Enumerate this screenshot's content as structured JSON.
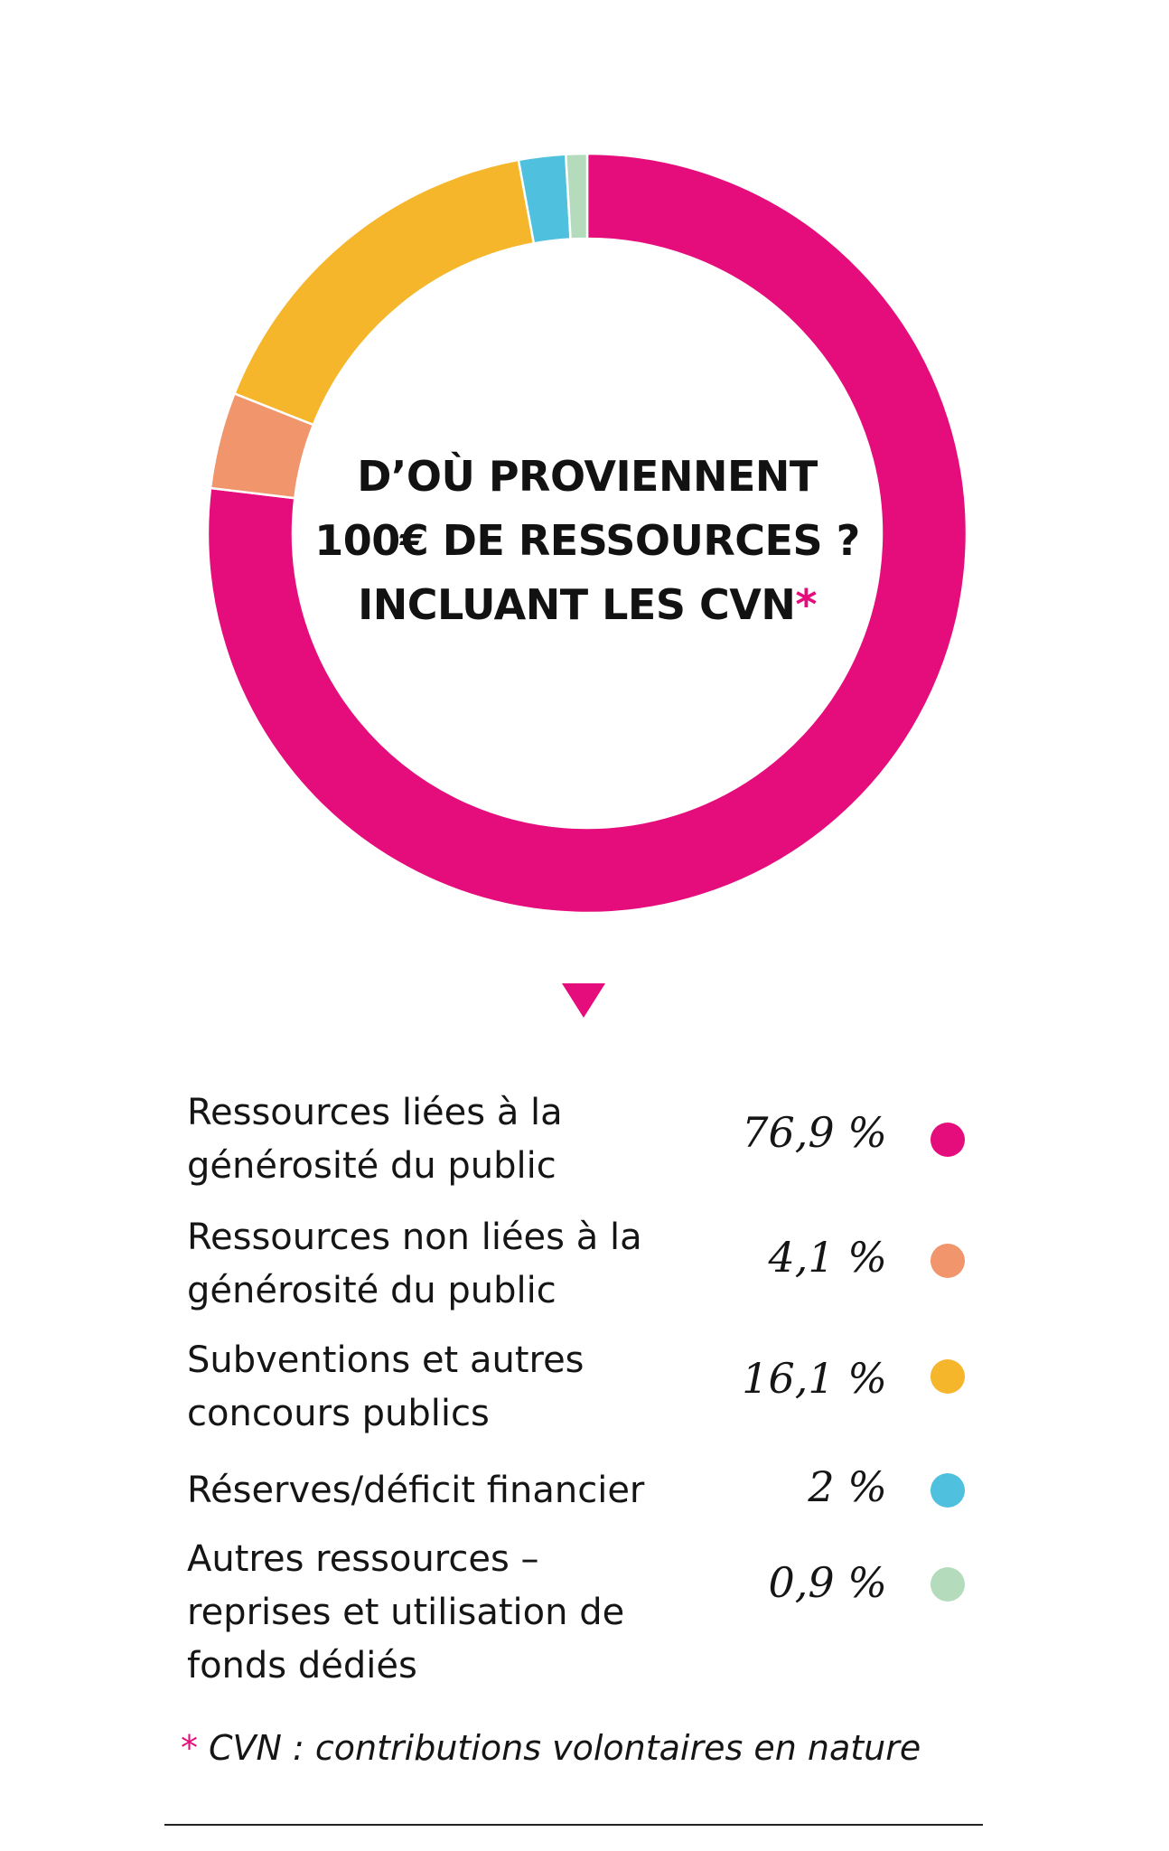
{
  "chart_data": {
    "type": "pie",
    "variant": "donut",
    "title_lines": [
      "D’OÙ PROVIENNENT",
      "100€ DE RESSOURCES ?",
      "INCLUANT LES CVN"
    ],
    "title_marker": "*",
    "unit": "%",
    "slices": [
      {
        "label": "Ressources liées à la\ngénérosité du public",
        "value": 76.9,
        "display": "76,9 %",
        "color": "#e50c7c"
      },
      {
        "label": "Ressources non liées à la\ngénérosité du public",
        "value": 4.1,
        "display": "4,1 %",
        "color": "#f0956c"
      },
      {
        "label": "Subventions et autres\nconcours publics",
        "value": 16.1,
        "display": "16,1 %",
        "color": "#f5b62b"
      },
      {
        "label": "Réserves/déficit financier",
        "value": 2,
        "display": "2 %",
        "color": "#4fc0dd"
      },
      {
        "label": "Autres ressources –\nreprises et utilisation de\nfonds dédiés",
        "value": 0.9,
        "display": "0,9 %",
        "color": "#b4dcbc"
      }
    ],
    "legend_position": "bottom"
  },
  "footnote": {
    "marker": "*",
    "text": "CVN : contributions volontaires en nature"
  },
  "icons": {
    "pointer": "down-triangle-icon"
  }
}
